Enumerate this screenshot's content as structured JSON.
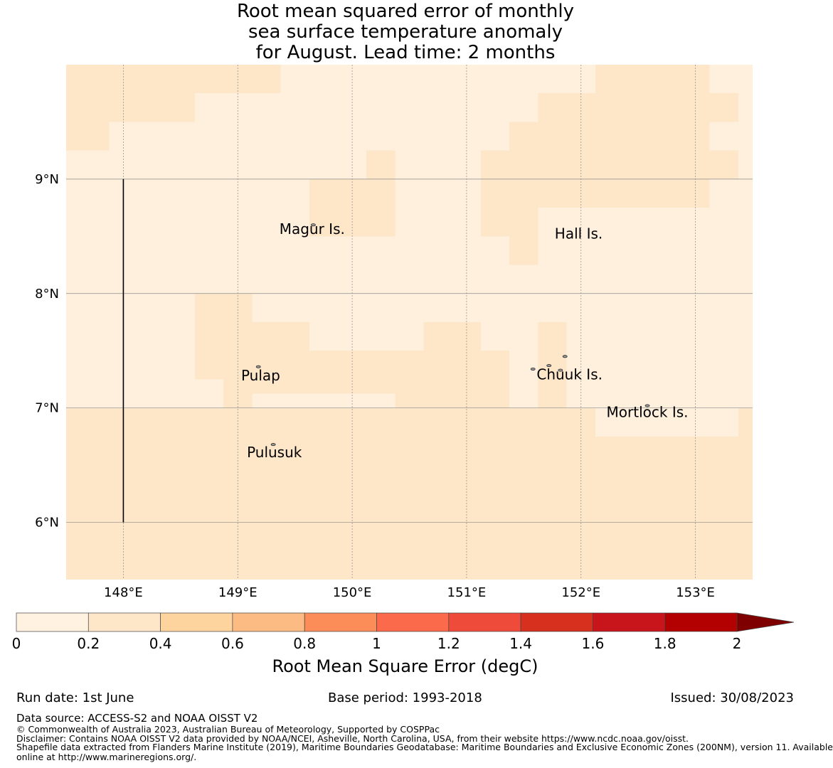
{
  "title": {
    "line1": "Root mean squared error of monthly",
    "line2": "sea surface temperature anomaly",
    "line3": " for August. Lead time: 2 months"
  },
  "map": {
    "lon_range": [
      147.5,
      153.5
    ],
    "lat_range": [
      5.5,
      10.0
    ],
    "lon_ticks": [
      {
        "value": 148,
        "label": "148°E"
      },
      {
        "value": 149,
        "label": "149°E"
      },
      {
        "value": 150,
        "label": "150°E"
      },
      {
        "value": 151,
        "label": "151°E"
      },
      {
        "value": 152,
        "label": "152°E"
      },
      {
        "value": 153,
        "label": "153°E"
      }
    ],
    "lat_ticks": [
      {
        "value": 6,
        "label": "6°N"
      },
      {
        "value": 7,
        "label": "7°N"
      },
      {
        "value": 8,
        "label": "8°N"
      },
      {
        "value": 9,
        "label": "9°N"
      }
    ],
    "grid": true,
    "background_color": "#fff0de",
    "band_color": "#fee6c8",
    "boundary_line": {
      "lon": 148,
      "lat_from": 6,
      "lat_to": 9
    },
    "cells_0_2_to_0_4": [
      [
        147.5,
        9.75,
        148.25,
        10.0
      ],
      [
        148.25,
        9.75,
        149.0,
        10.0
      ],
      [
        149.0,
        9.75,
        149.375,
        10.0
      ],
      [
        147.5,
        9.5,
        148.125,
        9.75
      ],
      [
        148.125,
        9.5,
        148.625,
        9.75
      ],
      [
        147.5,
        9.25,
        147.875,
        9.5
      ],
      [
        150.125,
        9.0,
        150.375,
        9.25
      ],
      [
        149.625,
        8.5,
        150.375,
        9.0
      ],
      [
        151.125,
        8.5,
        151.375,
        9.25
      ],
      [
        151.625,
        9.5,
        151.875,
        9.75
      ],
      [
        151.375,
        8.25,
        151.625,
        9.5
      ],
      [
        151.625,
        8.75,
        151.875,
        9.5
      ],
      [
        151.875,
        8.75,
        153.125,
        9.75
      ],
      [
        152.125,
        9.75,
        153.125,
        10.0
      ],
      [
        153.125,
        9.5,
        153.375,
        9.75
      ],
      [
        153.125,
        9.0,
        153.375,
        9.25
      ],
      [
        148.625,
        7.25,
        149.125,
        8.0
      ],
      [
        149.125,
        7.125,
        149.625,
        7.75
      ],
      [
        149.625,
        7.125,
        150.375,
        7.5
      ],
      [
        148.875,
        7.0,
        149.125,
        7.25
      ],
      [
        150.375,
        7.0,
        150.625,
        7.5
      ],
      [
        150.625,
        7.0,
        150.875,
        7.75
      ],
      [
        150.875,
        7.0,
        151.125,
        7.75
      ],
      [
        151.125,
        7.0,
        151.375,
        7.5
      ],
      [
        151.625,
        7.0,
        151.875,
        7.75
      ],
      [
        147.5,
        5.5,
        153.5,
        7.0
      ]
    ],
    "cells_light_inside_band": [
      [
        152.125,
        6.75,
        153.375,
        7.0
      ]
    ],
    "places": [
      {
        "name": "Magur Is.",
        "lon": 149.65,
        "lat": 8.52
      },
      {
        "name": "Hall Is.",
        "lon": 151.98,
        "lat": 8.48
      },
      {
        "name": "Pulap",
        "lon": 149.2,
        "lat": 7.24
      },
      {
        "name": "Chuuk Is.",
        "lon": 151.9,
        "lat": 7.25
      },
      {
        "name": "Mortlock Is.",
        "lon": 152.58,
        "lat": 6.92
      },
      {
        "name": "Pulusuk",
        "lon": 149.32,
        "lat": 6.57
      }
    ],
    "islands": [
      {
        "lon": 149.66,
        "lat": 8.6
      },
      {
        "lon": 149.18,
        "lat": 7.36
      },
      {
        "lon": 149.31,
        "lat": 6.68
      },
      {
        "lon": 151.58,
        "lat": 7.34
      },
      {
        "lon": 151.72,
        "lat": 7.37
      },
      {
        "lon": 151.86,
        "lat": 7.45
      },
      {
        "lon": 151.82,
        "lat": 7.33
      },
      {
        "lon": 152.58,
        "lat": 7.02
      }
    ]
  },
  "colorbar": {
    "label": "Root Mean Square Error (degC)",
    "ticks": [
      "0",
      "0.2",
      "0.4",
      "0.6",
      "0.8",
      "1",
      "1.2",
      "1.4",
      "1.6",
      "1.8",
      "2"
    ],
    "colors": [
      "#fff2e0",
      "#fee6c9",
      "#fdd49e",
      "#fdbb84",
      "#fc8d59",
      "#fb6a4a",
      "#ef4b3b",
      "#d7301f",
      "#c8141b",
      "#b30000"
    ],
    "extend_color": "#7f0000"
  },
  "footer": {
    "run_date": "Run date: 1st June",
    "base_period": "Base period: 1993-2018",
    "issued": "Issued: 30/08/2023",
    "data_source": "Data source: ACCESS-S2 and NOAA OISST V2",
    "copyright": "© Commonwealth of Australia 2023, Australian Bureau of Meteorology, Supported by COSPPac",
    "disclaimer": "Disclaimer: Contains NOAA OISST V2 data provided by NOAA/NCEI, Asheville, North Carolina, USA, from their website https://www.ncdc.noaa.gov/oisst.",
    "shapefile1": "Shapefile data extracted from Flanders Marine Institute (2019), Maritime Boundaries Geodatabase: Maritime Boundaries and Exclusive Economic Zones (200NM), version 11. Available",
    "shapefile2": "online at http://www.marineregions.org/."
  }
}
